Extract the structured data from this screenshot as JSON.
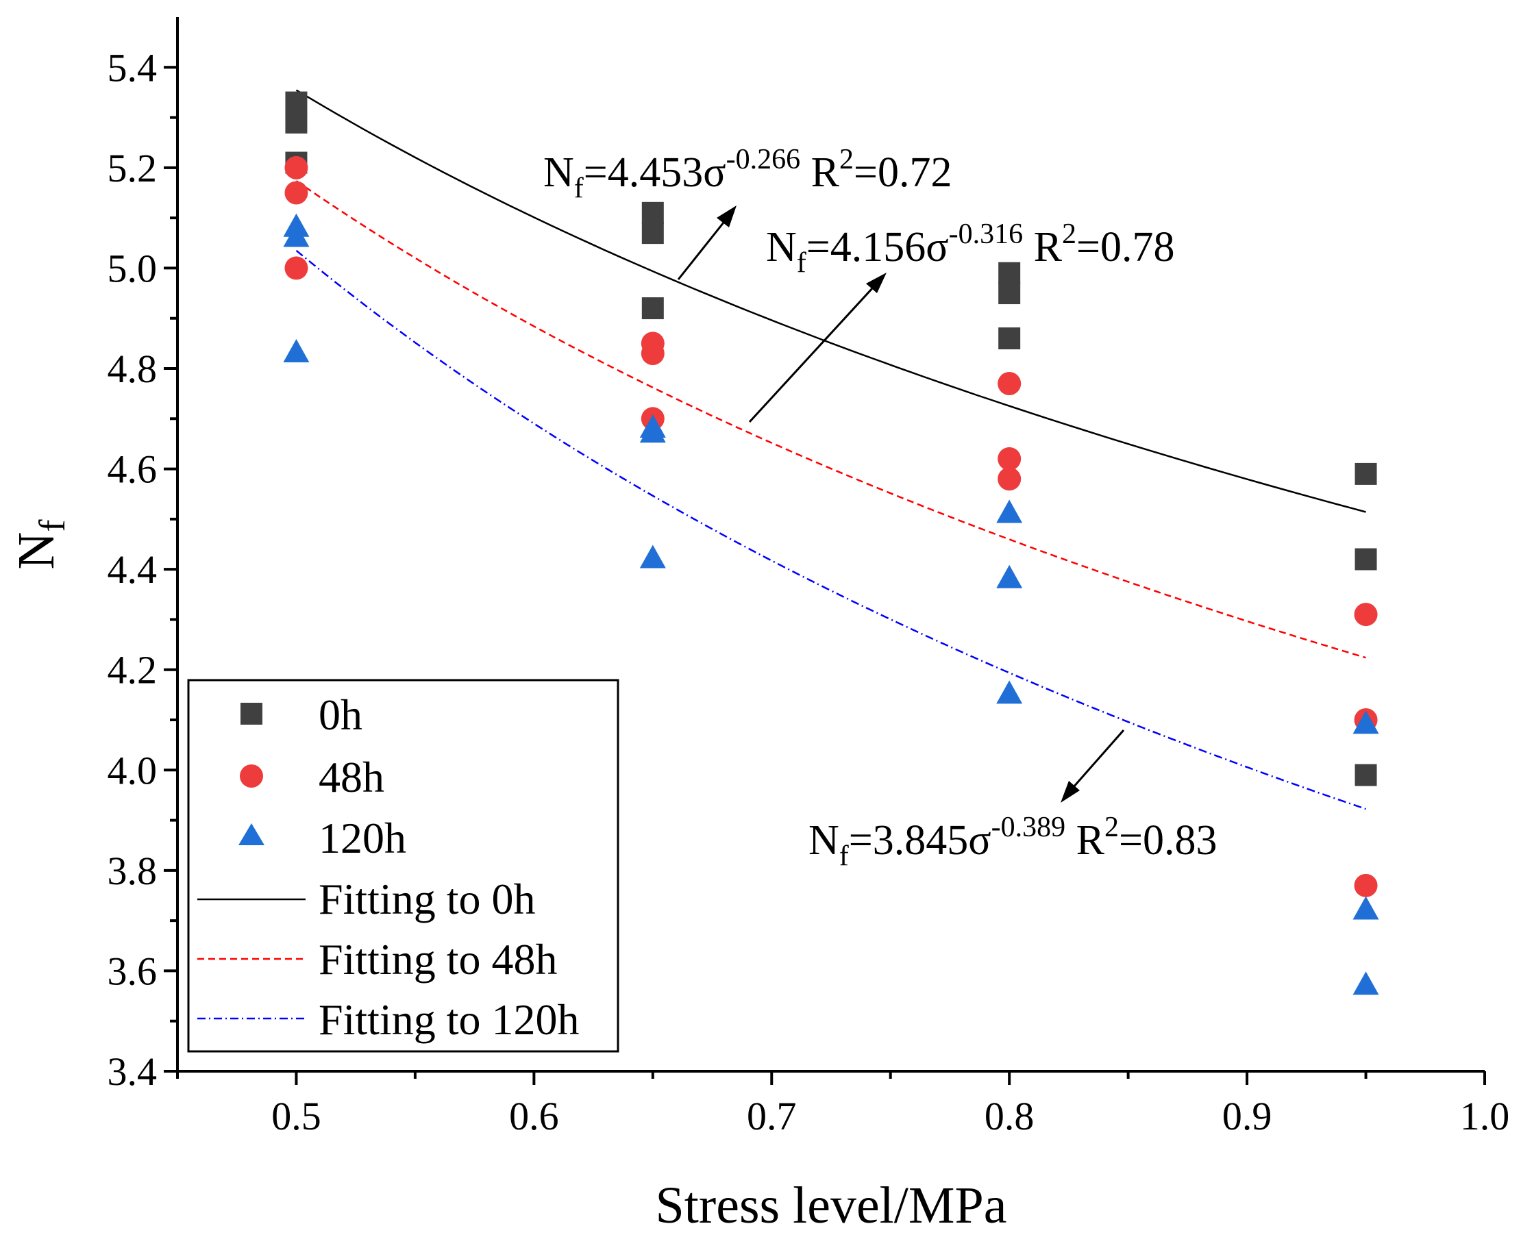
{
  "chart_data": {
    "type": "scatter",
    "title": "",
    "xlabel": "Stress level/MPa",
    "ylabel": "N",
    "ylabel_sub": "f",
    "xlim": [
      0.45,
      1.0
    ],
    "ylim": [
      3.4,
      5.5
    ],
    "x_ticks": [
      0.5,
      0.6,
      0.7,
      0.8,
      0.9,
      1.0
    ],
    "x_tick_labels": [
      "0.5",
      "0.6",
      "0.7",
      "0.8",
      "0.9",
      "1.0"
    ],
    "y_ticks": [
      3.4,
      3.6,
      3.8,
      4.0,
      4.2,
      4.4,
      4.6,
      4.8,
      5.0,
      5.2,
      5.4
    ],
    "y_tick_labels": [
      "3.4",
      "3.6",
      "3.8",
      "4.0",
      "4.2",
      "4.4",
      "4.6",
      "4.8",
      "5.0",
      "5.2",
      "5.4"
    ],
    "grid": false,
    "legend_position": "bottom-left",
    "series": [
      {
        "name": "0h",
        "marker": "square",
        "color": "#404040",
        "points": [
          [
            0.5,
            5.33
          ],
          [
            0.5,
            5.29
          ],
          [
            0.5,
            5.21
          ],
          [
            0.65,
            5.11
          ],
          [
            0.65,
            5.07
          ],
          [
            0.65,
            4.92
          ],
          [
            0.8,
            4.99
          ],
          [
            0.8,
            4.95
          ],
          [
            0.8,
            4.86
          ],
          [
            0.95,
            4.59
          ],
          [
            0.95,
            4.42
          ],
          [
            0.95,
            3.99
          ]
        ]
      },
      {
        "name": "48h",
        "marker": "circle",
        "color": "#ee3b3b",
        "points": [
          [
            0.5,
            5.2
          ],
          [
            0.5,
            5.15
          ],
          [
            0.5,
            5.0
          ],
          [
            0.65,
            4.85
          ],
          [
            0.65,
            4.83
          ],
          [
            0.65,
            4.7
          ],
          [
            0.8,
            4.77
          ],
          [
            0.8,
            4.62
          ],
          [
            0.8,
            4.58
          ],
          [
            0.95,
            4.31
          ],
          [
            0.95,
            4.1
          ],
          [
            0.95,
            3.77
          ]
        ]
      },
      {
        "name": "120h",
        "marker": "triangle",
        "color": "#1f6fd6",
        "points": [
          [
            0.5,
            5.08
          ],
          [
            0.5,
            5.06
          ],
          [
            0.5,
            4.83
          ],
          [
            0.65,
            4.68
          ],
          [
            0.65,
            4.67
          ],
          [
            0.65,
            4.42
          ],
          [
            0.8,
            4.51
          ],
          [
            0.8,
            4.38
          ],
          [
            0.8,
            4.15
          ],
          [
            0.95,
            4.09
          ],
          [
            0.95,
            3.72
          ],
          [
            0.95,
            3.57
          ]
        ]
      }
    ],
    "fits": [
      {
        "name": "Fitting to 0h",
        "a": 4.453,
        "b": -0.266,
        "x_range": [
          0.5,
          0.95
        ],
        "color": "#000000",
        "dash": "solid"
      },
      {
        "name": "Fitting to 48h",
        "a": 4.156,
        "b": -0.316,
        "x_range": [
          0.5,
          0.95
        ],
        "color": "#ff0000",
        "dash": "dashed"
      },
      {
        "name": "Fitting to 120h",
        "a": 3.845,
        "b": -0.389,
        "x_range": [
          0.5,
          0.95
        ],
        "color": "#0000ff",
        "dash": "dash-dot"
      }
    ],
    "annotations": [
      {
        "pre": "N",
        "sub": "f",
        "mid": "=4.453σ",
        "sup": "-0.266",
        "r_pre": " R",
        "r_sup": "2",
        "r_post": "=0.72"
      },
      {
        "pre": "N",
        "sub": "f",
        "mid": "=4.156σ",
        "sup": "-0.316",
        "r_pre": " R",
        "r_sup": "2",
        "r_post": "=0.78"
      },
      {
        "pre": "N",
        "sub": "f",
        "mid": "=3.845σ",
        "sup": "-0.389",
        "r_pre": " R",
        "r_sup": "2",
        "r_post": "=0.83"
      }
    ]
  }
}
